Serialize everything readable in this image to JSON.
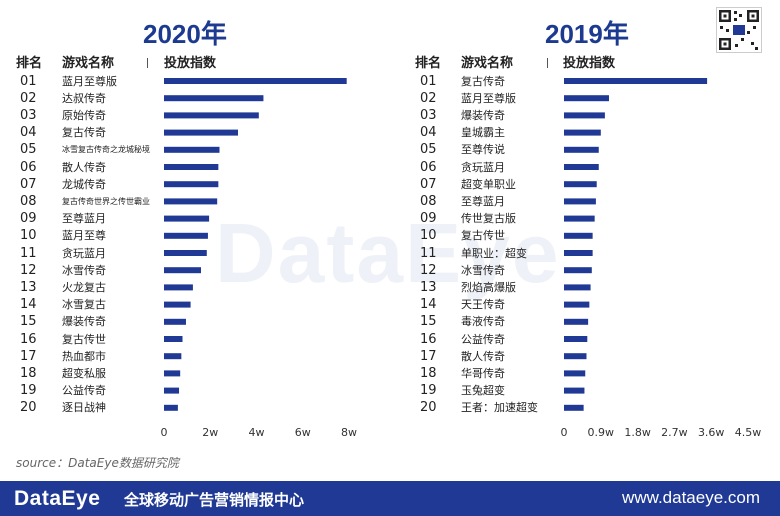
{
  "brand": {
    "watermark": "DataEye",
    "source_note": "source：DataEye数据研究院",
    "footer_logo": "DataEye",
    "footer_tagline": "全球移动广告营销情报中心",
    "footer_website": "www.dataeye.com",
    "accent_color": "#1f3994"
  },
  "chart_data": [
    {
      "type": "bar",
      "orientation": "horizontal",
      "title": "2020年",
      "headers": {
        "rank": "排名",
        "name": "游戏名称",
        "value": "投放指数"
      },
      "ranks": [
        "01",
        "02",
        "03",
        "04",
        "05",
        "06",
        "07",
        "08",
        "09",
        "10",
        "11",
        "12",
        "13",
        "14",
        "15",
        "16",
        "17",
        "18",
        "19",
        "20"
      ],
      "categories": [
        "蓝月至尊版",
        "达叔传奇",
        "原始传奇",
        "复古传奇",
        "冰雪复古传奇之龙城秘境",
        "散人传奇",
        "龙城传奇",
        "复古传奇世界之传世霸业",
        "至尊蓝月",
        "蓝月至尊",
        "贪玩蓝月",
        "冰雪传奇",
        "火龙复古",
        "冰雪复古",
        "爆装传奇",
        "复古传世",
        "热血都市",
        "超变私服",
        "公益传奇",
        "逐日战神"
      ],
      "values": [
        79000,
        43000,
        41000,
        32000,
        24000,
        23500,
        23500,
        23000,
        19500,
        19000,
        18500,
        16000,
        12500,
        11500,
        9500,
        8000,
        7500,
        7000,
        6500,
        6000
      ],
      "xlim": [
        0,
        80000
      ],
      "xticks": [
        "0",
        "2w",
        "4w",
        "6w",
        "8w"
      ],
      "xtick_values": [
        0,
        20000,
        40000,
        60000,
        80000
      ],
      "bar_color": "#1f3994"
    },
    {
      "type": "bar",
      "orientation": "horizontal",
      "title": "2019年",
      "headers": {
        "rank": "排名",
        "name": "游戏名称",
        "value": "投放指数"
      },
      "ranks": [
        "01",
        "02",
        "03",
        "04",
        "05",
        "06",
        "07",
        "08",
        "09",
        "10",
        "11",
        "12",
        "13",
        "14",
        "15",
        "16",
        "17",
        "18",
        "19",
        "20"
      ],
      "categories": [
        "复古传奇",
        "蓝月至尊版",
        "爆装传奇",
        "皇城霸主",
        "至尊传说",
        "贪玩蓝月",
        "超变单职业",
        "至尊蓝月",
        "传世复古版",
        "复古传世",
        "单职业：超变",
        "冰雪传奇",
        "烈焰高爆版",
        "天王传奇",
        "毒液传奇",
        "公益传奇",
        "散人传奇",
        "华哥传奇",
        "玉兔超变",
        "王者：加速超变"
      ],
      "values": [
        35000,
        11000,
        10000,
        9000,
        8500,
        8500,
        8000,
        7800,
        7500,
        7000,
        7000,
        6800,
        6500,
        6200,
        5900,
        5700,
        5500,
        5200,
        5000,
        4800
      ],
      "xlim": [
        0,
        45000
      ],
      "xticks": [
        "0",
        "0.9w",
        "1.8w",
        "2.7w",
        "3.6w",
        "4.5w"
      ],
      "xtick_values": [
        0,
        9000,
        18000,
        27000,
        36000,
        45000
      ],
      "bar_color": "#1f3994"
    }
  ]
}
